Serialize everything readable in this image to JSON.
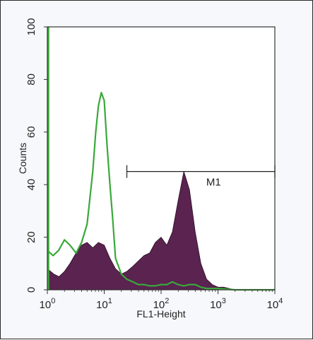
{
  "chart_data": {
    "type": "histogram",
    "title": "",
    "xlabel": "FL1-Height",
    "ylabel": "Counts",
    "x_scale": "log",
    "xlim": [
      1,
      10000
    ],
    "ylim": [
      0,
      100
    ],
    "x_ticks": [
      {
        "value": 1,
        "base": "10",
        "exp": "0"
      },
      {
        "value": 10,
        "base": "10",
        "exp": "1"
      },
      {
        "value": 100,
        "base": "10",
        "exp": "2"
      },
      {
        "value": 1000,
        "base": "10",
        "exp": "3"
      },
      {
        "value": 10000,
        "base": "10",
        "exp": "4"
      }
    ],
    "y_ticks": [
      "0",
      "20",
      "40",
      "60",
      "80",
      "100"
    ],
    "grid": false,
    "legend": "none",
    "series": [
      {
        "style": "filled",
        "color": "#5a2350",
        "x": [
          1.0,
          1.3,
          1.6,
          2.0,
          2.5,
          3.2,
          4.0,
          5.0,
          6.3,
          7.9,
          10,
          12.6,
          15.8,
          20,
          25,
          32,
          40,
          50,
          63,
          79,
          100,
          126,
          158,
          200,
          251,
          316,
          398,
          501,
          631,
          794,
          1000,
          1260,
          1580,
          2000,
          3000,
          5000,
          8000,
          10000
        ],
        "y": [
          8,
          6,
          5,
          7,
          10,
          14,
          17,
          18,
          16,
          18,
          17,
          12,
          8,
          6,
          7,
          9,
          11,
          13,
          14,
          18,
          20,
          17,
          22,
          34,
          45,
          38,
          22,
          10,
          4,
          2,
          1,
          1,
          0.5,
          0,
          0,
          0,
          0,
          0
        ]
      },
      {
        "style": "line",
        "color": "#3aa83a",
        "x": [
          1.0,
          1.26,
          1.58,
          2.0,
          2.5,
          3.2,
          4.0,
          5.0,
          6.3,
          7.1,
          7.9,
          8.9,
          10,
          11.2,
          12.6,
          14.1,
          15.8,
          20,
          25,
          32,
          40,
          50,
          63,
          79,
          100,
          126,
          158,
          200,
          251,
          316,
          398,
          501,
          631,
          794,
          1000,
          2000,
          5000,
          10000
        ],
        "y": [
          15,
          13,
          15,
          19,
          17,
          14,
          18,
          25,
          45,
          60,
          70,
          75,
          72,
          55,
          40,
          27,
          12,
          6,
          4,
          3,
          2,
          2,
          1.5,
          1.5,
          2,
          2,
          3,
          2,
          1.5,
          2,
          2,
          1,
          0.5,
          0.5,
          0.5,
          0,
          0,
          0
        ]
      }
    ],
    "markers": [
      {
        "label": "M1",
        "x_start": 25,
        "x_end": 10000,
        "y": 45
      }
    ]
  }
}
